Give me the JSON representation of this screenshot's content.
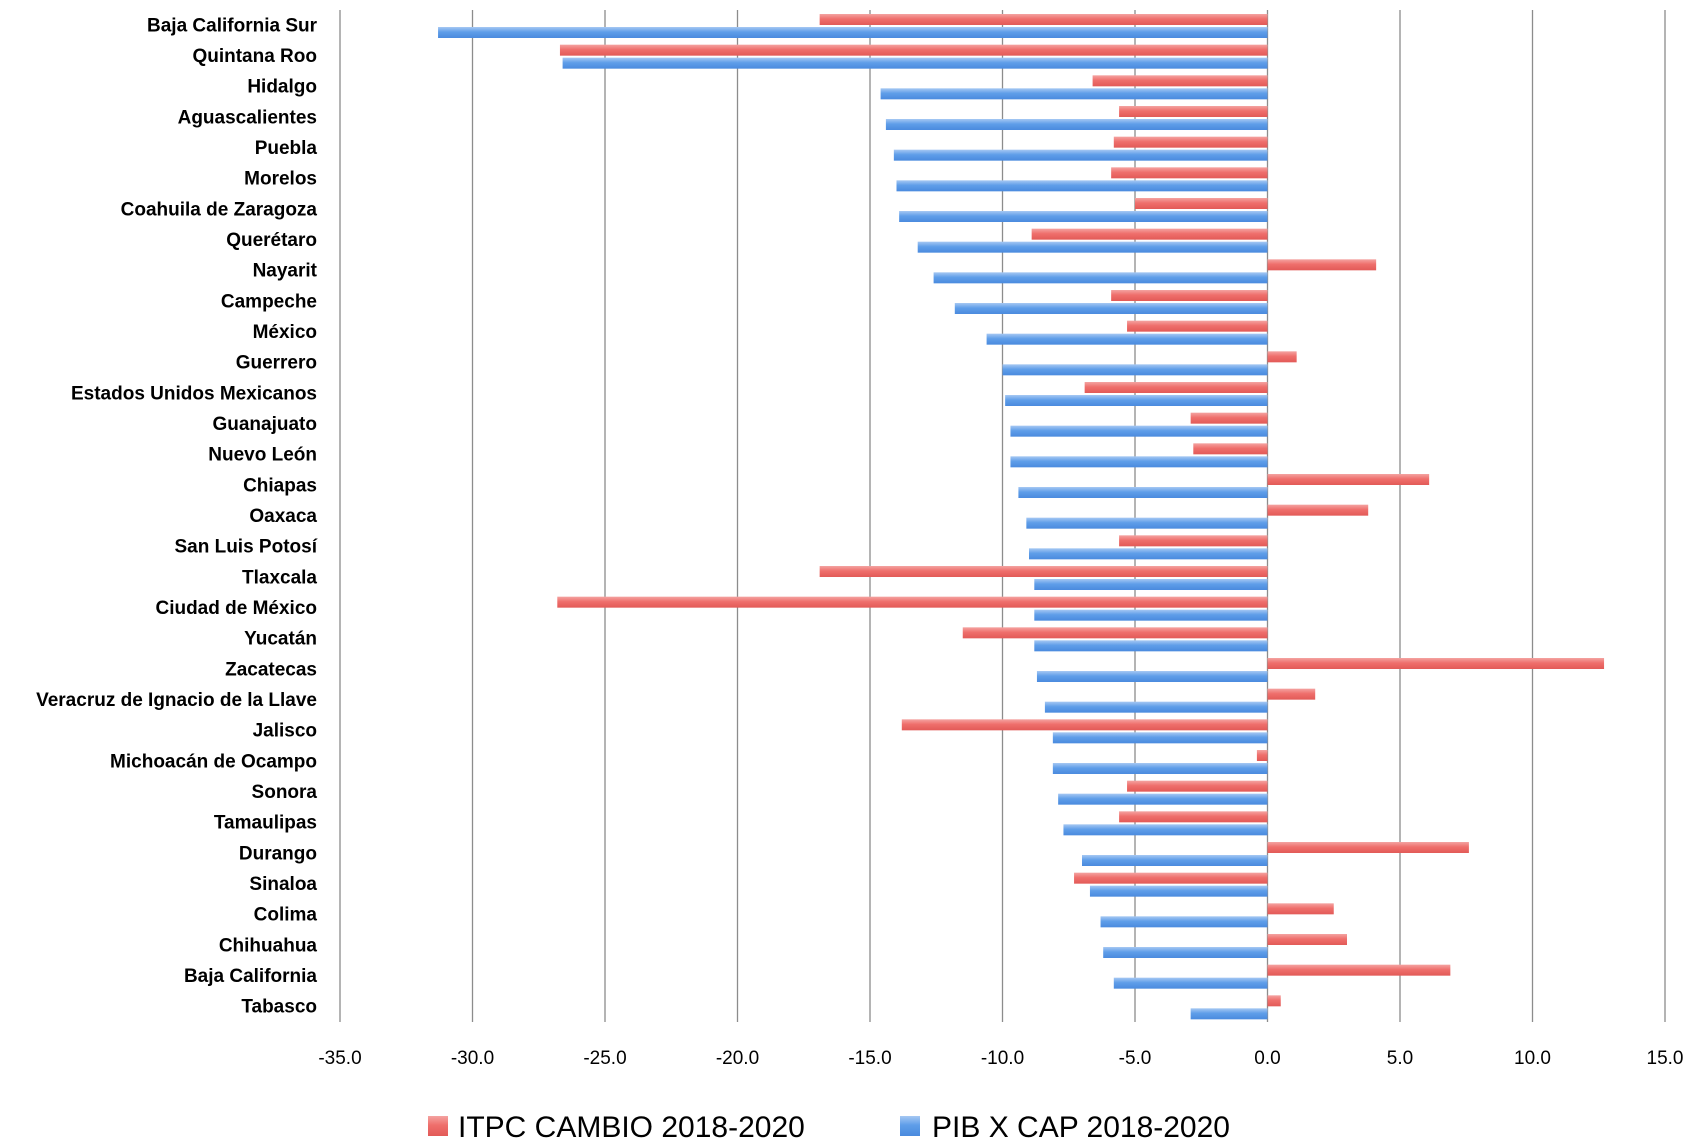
{
  "chart_data": {
    "type": "bar",
    "orientation": "horizontal",
    "categories": [
      "Baja California Sur",
      "Quintana Roo",
      "Hidalgo",
      "Aguascalientes",
      "Puebla",
      "Morelos",
      "Coahuila de Zaragoza",
      "Querétaro",
      "Nayarit",
      "Campeche",
      "México",
      "Guerrero",
      "Estados Unidos Mexicanos",
      "Guanajuato",
      "Nuevo León",
      "Chiapas",
      "Oaxaca",
      "San Luis Potosí",
      "Tlaxcala",
      "Ciudad de México",
      "Yucatán",
      "Zacatecas",
      "Veracruz de Ignacio de la Llave",
      "Jalisco",
      "Michoacán de Ocampo",
      "Sonora",
      "Tamaulipas",
      "Durango",
      "Sinaloa",
      "Colima",
      "Chihuahua",
      "Baja California",
      "Tabasco"
    ],
    "series": [
      {
        "name": "ITPC CAMBIO 2018-2020",
        "color": "#ef6f6c",
        "values": [
          -16.9,
          -26.7,
          -6.6,
          -5.6,
          -5.8,
          -5.9,
          -5.0,
          -8.9,
          4.1,
          -5.9,
          -5.3,
          1.1,
          -6.9,
          -2.9,
          -2.8,
          6.1,
          3.8,
          -5.6,
          -16.9,
          -26.8,
          -11.5,
          12.7,
          1.8,
          -13.8,
          -0.4,
          -5.3,
          -5.6,
          7.6,
          -7.3,
          2.5,
          3.0,
          6.9,
          0.5
        ]
      },
      {
        "name": "PIB X CAP 2018-2020",
        "color": "#5f9ee9",
        "values": [
          -31.3,
          -26.6,
          -14.6,
          -14.4,
          -14.1,
          -14.0,
          -13.9,
          -13.2,
          -12.6,
          -11.8,
          -10.6,
          -10.0,
          -9.9,
          -9.7,
          -9.7,
          -9.4,
          -9.1,
          -9.0,
          -8.8,
          -8.8,
          -8.8,
          -8.7,
          -8.4,
          -8.1,
          -8.1,
          -7.9,
          -7.7,
          -7.0,
          -6.7,
          -6.3,
          -6.2,
          -5.8,
          -2.9
        ]
      }
    ],
    "xlim": [
      -35,
      15
    ],
    "xticks": [
      -35,
      -30,
      -25,
      -20,
      -15,
      -10,
      -5,
      0,
      5,
      10,
      15
    ],
    "xtick_labels": [
      "-35.0",
      "-30.0",
      "-25.0",
      "-20.0",
      "-15.0",
      "-10.0",
      "-5.0",
      "0.0",
      "5.0",
      "10.0",
      "15.0"
    ],
    "grid": "vertical",
    "legend_position": "bottom",
    "title": "",
    "xlabel": "",
    "ylabel": ""
  }
}
